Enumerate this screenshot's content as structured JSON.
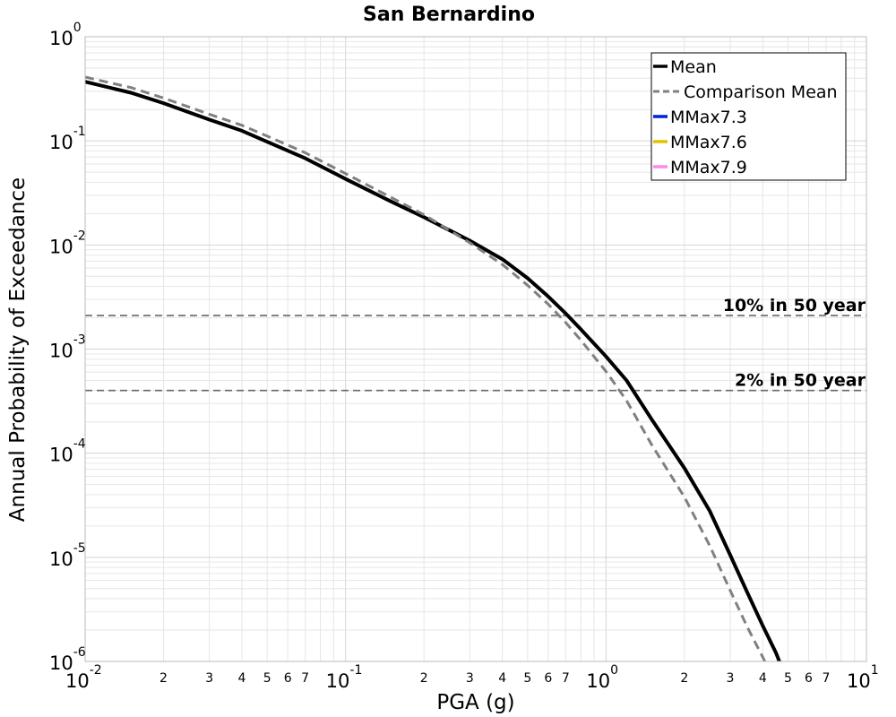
{
  "chart_data": {
    "type": "line",
    "title": "San Bernardino",
    "xlabel": "PGA (g)",
    "ylabel": "Annual Probability of Exceedance",
    "x_scale": "log",
    "y_scale": "log",
    "xlim": [
      0.01,
      10
    ],
    "ylim": [
      1e-06,
      1
    ],
    "grid": true,
    "legend_position": "top-right",
    "x_major_ticks": [
      {
        "base": "10",
        "exp": "-2"
      },
      {
        "base": "10",
        "exp": "-1"
      },
      {
        "base": "10",
        "exp": "0"
      },
      {
        "base": "10",
        "exp": "1"
      }
    ],
    "y_major_ticks": [
      {
        "base": "10",
        "exp": "0"
      },
      {
        "base": "10",
        "exp": "-1"
      },
      {
        "base": "10",
        "exp": "-2"
      },
      {
        "base": "10",
        "exp": "-3"
      },
      {
        "base": "10",
        "exp": "-4"
      },
      {
        "base": "10",
        "exp": "-5"
      },
      {
        "base": "10",
        "exp": "-6"
      }
    ],
    "x_minor_tick_labels": [
      "2",
      "3",
      "4",
      "5",
      "6",
      "7"
    ],
    "series": [
      {
        "name": "Mean",
        "color": "#000000",
        "style": "solid",
        "x": [
          0.01,
          0.015,
          0.02,
          0.03,
          0.04,
          0.05,
          0.07,
          0.1,
          0.15,
          0.2,
          0.3,
          0.4,
          0.5,
          0.6,
          0.7,
          0.8,
          1.0,
          1.2,
          1.5,
          2.0,
          2.5,
          3.0,
          3.5,
          4.0,
          4.5,
          4.8
        ],
        "y": [
          0.37,
          0.29,
          0.23,
          0.16,
          0.125,
          0.098,
          0.068,
          0.043,
          0.026,
          0.0185,
          0.011,
          0.0073,
          0.0048,
          0.0032,
          0.0022,
          0.00155,
          0.00085,
          0.0005,
          0.00021,
          7.2e-05,
          2.8e-05,
          1.05e-05,
          4.5e-06,
          2.2e-06,
          1.2e-06,
          8e-07
        ]
      },
      {
        "name": "Comparison Mean",
        "color": "#808080",
        "style": "dashed",
        "x": [
          0.01,
          0.015,
          0.02,
          0.03,
          0.04,
          0.05,
          0.07,
          0.1,
          0.15,
          0.2,
          0.3,
          0.4,
          0.5,
          0.6,
          0.7,
          0.8,
          1.0,
          1.2,
          1.5,
          2.0,
          2.5,
          3.0,
          3.5,
          4.0,
          4.5
        ],
        "y": [
          0.41,
          0.325,
          0.258,
          0.18,
          0.141,
          0.111,
          0.077,
          0.0485,
          0.0285,
          0.0195,
          0.0105,
          0.0065,
          0.0041,
          0.0027,
          0.0018,
          0.00122,
          0.00061,
          0.00032,
          0.00012,
          3.8e-05,
          1.3e-05,
          4.8e-06,
          2.1e-06,
          1.1e-06,
          6e-07
        ]
      },
      {
        "name": "MMax7.3",
        "color": "#0022dd",
        "style": "solid",
        "x": [],
        "y": []
      },
      {
        "name": "MMax7.6",
        "color": "#e6c000",
        "style": "solid",
        "x": [],
        "y": []
      },
      {
        "name": "MMax7.9",
        "color": "#ff88ee",
        "style": "solid",
        "x": [],
        "y": []
      }
    ],
    "reference_lines": [
      {
        "label": "10% in 50 year",
        "y": 0.0021,
        "color": "#666666"
      },
      {
        "label": "2% in 50 year",
        "y": 0.0004,
        "color": "#666666"
      }
    ]
  }
}
